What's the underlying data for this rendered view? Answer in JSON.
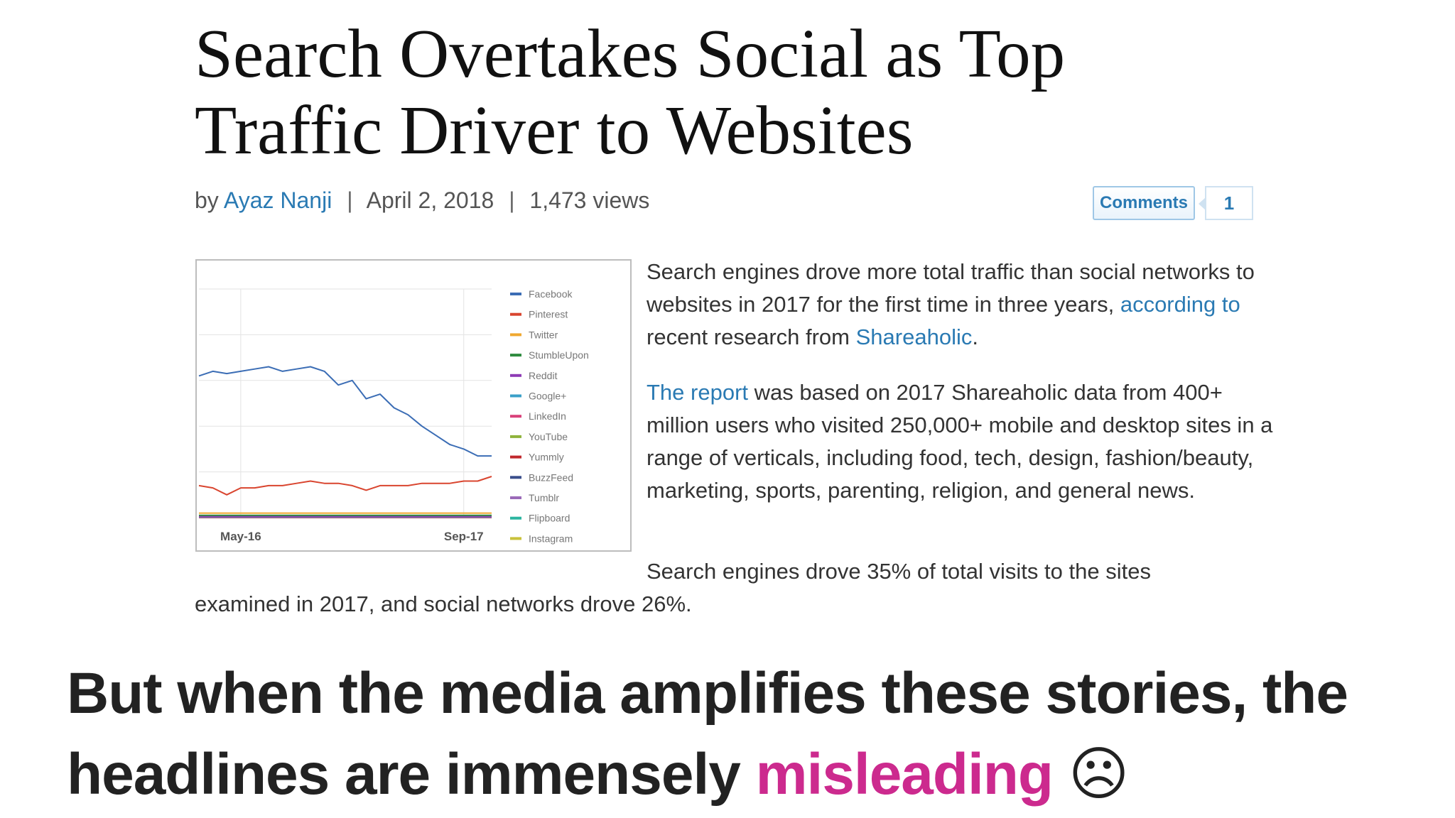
{
  "article": {
    "headline_line1": "Search Overtakes Social as Top",
    "headline_line2": "Traffic Driver to Websites",
    "byline": {
      "prefix": "by",
      "author": "Ayaz Nanji",
      "separator": "|",
      "date": "April 2, 2018",
      "views": "1,473 views"
    },
    "comments": {
      "label": "Comments",
      "count": "1"
    },
    "paragraph1": {
      "text1": "Search engines drove more total traffic than social networks to websites in 2017 for the first time in three years,",
      "link1": "according to",
      "text2": "recent research from",
      "link2": "Shareaholic",
      "text3": "."
    },
    "paragraph2": {
      "link": "The report",
      "text": "was based on 2017 Shareaholic data from 400+ million users who visited 250,000+ mobile and desktop sites in a range of verticals, including food, tech, design, fashion/beauty, marketing, sports, parenting, religion, and general news."
    },
    "paragraph3": {
      "line1": "Search engines drove 35% of total visits to the sites",
      "line2": "examined in 2017, and social networks drove 26%."
    },
    "link_color": "#2a7ab3"
  },
  "caption": {
    "line1": "But when the media amplifies these stories, the",
    "line2_text": "headlines are immensely",
    "line2_highlight": "misleading",
    "line2_symbol": "☹",
    "highlight_color": "#cc2a8e"
  },
  "chart_data": {
    "type": "line",
    "title": "",
    "xlabel": "",
    "ylabel": "",
    "x_ticks": [
      "May-16",
      "Sep-17"
    ],
    "x": [
      "Feb-16",
      "Mar-16",
      "Apr-16",
      "May-16",
      "Jun-16",
      "Jul-16",
      "Aug-16",
      "Sep-16",
      "Oct-16",
      "Nov-16",
      "Dec-16",
      "Jan-17",
      "Feb-17",
      "Mar-17",
      "Apr-17",
      "May-17",
      "Jun-17",
      "Jul-17",
      "Aug-17",
      "Sep-17",
      "Oct-17",
      "Nov-17"
    ],
    "ylim": [
      0,
      100
    ],
    "grid": true,
    "legend_position": "right",
    "series": [
      {
        "name": "Facebook",
        "color": "#3b6db5",
        "values": [
          62,
          64,
          63,
          64,
          65,
          66,
          64,
          65,
          66,
          64,
          58,
          60,
          52,
          54,
          48,
          45,
          40,
          36,
          32,
          30,
          27,
          27
        ]
      },
      {
        "name": "Pinterest",
        "color": "#d9452f",
        "values": [
          14,
          13,
          10,
          13,
          13,
          14,
          14,
          15,
          16,
          15,
          15,
          14,
          12,
          14,
          14,
          14,
          15,
          15,
          15,
          16,
          16,
          18
        ]
      },
      {
        "name": "Twitter",
        "color": "#f0a830",
        "values": [
          2,
          2,
          2,
          2,
          2,
          2,
          2,
          2,
          2,
          2,
          2,
          2,
          2,
          2,
          2,
          2,
          2,
          2,
          2,
          2,
          2,
          2
        ]
      },
      {
        "name": "StumbleUpon",
        "color": "#2e8b3e",
        "values": [
          1,
          1,
          1,
          1,
          1,
          1,
          1,
          1,
          1,
          1,
          1,
          1,
          1,
          1,
          1,
          1,
          1,
          1,
          1,
          1,
          1,
          1
        ]
      },
      {
        "name": "Reddit",
        "color": "#8e3bb5",
        "values": [
          0.5,
          0.5,
          0.5,
          0.5,
          0.5,
          0.5,
          0.5,
          0.5,
          0.5,
          0.5,
          0.5,
          0.5,
          0.5,
          0.5,
          0.5,
          0.5,
          0.5,
          0.5,
          0.5,
          0.5,
          0.5,
          0.5
        ]
      },
      {
        "name": "Google+",
        "color": "#3ba0c9",
        "values": [
          0.4,
          0.4,
          0.4,
          0.4,
          0.4,
          0.4,
          0.4,
          0.4,
          0.4,
          0.4,
          0.4,
          0.4,
          0.4,
          0.4,
          0.4,
          0.4,
          0.4,
          0.4,
          0.4,
          0.4,
          0.4,
          0.4
        ]
      },
      {
        "name": "LinkedIn",
        "color": "#d9417a",
        "values": [
          0.3,
          0.3,
          0.3,
          0.3,
          0.3,
          0.3,
          0.3,
          0.3,
          0.3,
          0.3,
          0.3,
          0.3,
          0.3,
          0.3,
          0.3,
          0.3,
          0.3,
          0.3,
          0.3,
          0.3,
          0.3,
          0.3
        ]
      },
      {
        "name": "YouTube",
        "color": "#8fb33b",
        "values": [
          0.3,
          0.3,
          0.3,
          0.3,
          0.3,
          0.3,
          0.3,
          0.3,
          0.3,
          0.3,
          0.3,
          0.3,
          0.3,
          0.3,
          0.3,
          0.3,
          0.3,
          0.3,
          0.3,
          0.3,
          0.3,
          0.3
        ]
      },
      {
        "name": "Yummly",
        "color": "#c0282d",
        "values": [
          0.2,
          0.2,
          0.2,
          0.2,
          0.2,
          0.2,
          0.2,
          0.2,
          0.2,
          0.2,
          0.2,
          0.2,
          0.2,
          0.2,
          0.2,
          0.2,
          0.2,
          0.2,
          0.2,
          0.2,
          0.2,
          0.2
        ]
      },
      {
        "name": "BuzzFeed",
        "color": "#3b4f8c",
        "values": [
          0.2,
          0.2,
          0.2,
          0.2,
          0.2,
          0.2,
          0.2,
          0.2,
          0.2,
          0.2,
          0.2,
          0.2,
          0.2,
          0.2,
          0.2,
          0.2,
          0.2,
          0.2,
          0.2,
          0.2,
          0.2,
          0.2
        ]
      },
      {
        "name": "Tumblr",
        "color": "#9b6ab8",
        "values": [
          0.1,
          0.1,
          0.1,
          0.1,
          0.1,
          0.1,
          0.1,
          0.1,
          0.1,
          0.1,
          0.1,
          0.1,
          0.1,
          0.1,
          0.1,
          0.1,
          0.1,
          0.1,
          0.1,
          0.1,
          0.1,
          0.1
        ]
      },
      {
        "name": "Flipboard",
        "color": "#2bb5a0",
        "values": [
          0.1,
          0.1,
          0.1,
          0.1,
          0.1,
          0.1,
          0.1,
          0.1,
          0.1,
          0.1,
          0.1,
          0.1,
          0.1,
          0.1,
          0.1,
          0.1,
          0.1,
          0.1,
          0.1,
          0.1,
          0.1,
          0.1
        ]
      },
      {
        "name": "Instagram",
        "color": "#c9c23b",
        "values": [
          0.1,
          0.1,
          0.1,
          0.1,
          0.1,
          0.1,
          0.1,
          0.1,
          0.1,
          0.1,
          0.1,
          0.1,
          0.1,
          0.1,
          0.1,
          0.1,
          0.1,
          0.1,
          0.1,
          0.1,
          0.1,
          0.1
        ]
      }
    ]
  }
}
